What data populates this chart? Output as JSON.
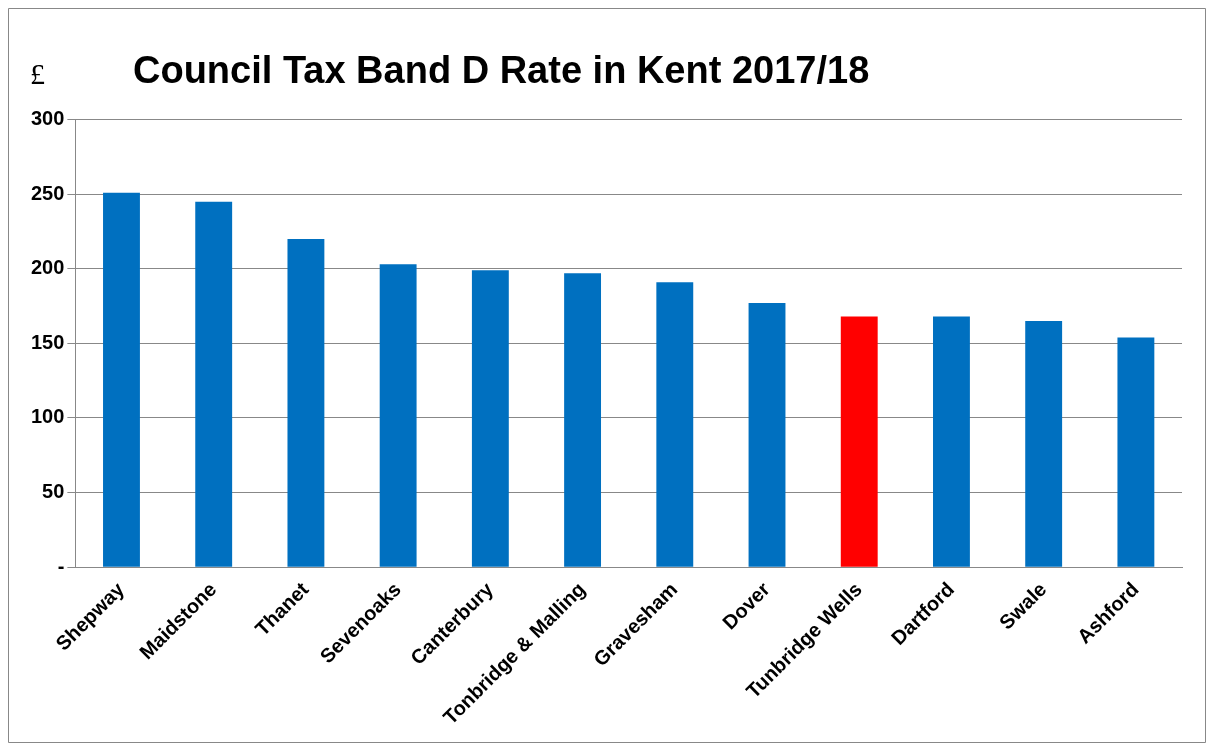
{
  "chart_data": {
    "type": "bar",
    "title": "Council Tax Band D Rate in Kent 2017/18",
    "ylabel": "£",
    "categories": [
      "Shepway",
      "Maidstone",
      "Thanet",
      "Sevenoaks",
      "Canterbury",
      "Tonbridge & Malling",
      "Gravesham",
      "Dover",
      "Tunbridge Wells",
      "Dartford",
      "Swale",
      "Ashford"
    ],
    "values": [
      251,
      245,
      220,
      203,
      199,
      197,
      191,
      177,
      168,
      168,
      165,
      154
    ],
    "colors": [
      "#0070c0",
      "#0070c0",
      "#0070c0",
      "#0070c0",
      "#0070c0",
      "#0070c0",
      "#0070c0",
      "#0070c0",
      "#ff0000",
      "#0070c0",
      "#0070c0",
      "#0070c0"
    ],
    "ylim": [
      0,
      300
    ],
    "yticks": [
      {
        "value": 0,
        "label": "-"
      },
      50,
      100,
      150,
      200,
      250,
      300
    ],
    "grid": "y",
    "legend": false
  }
}
